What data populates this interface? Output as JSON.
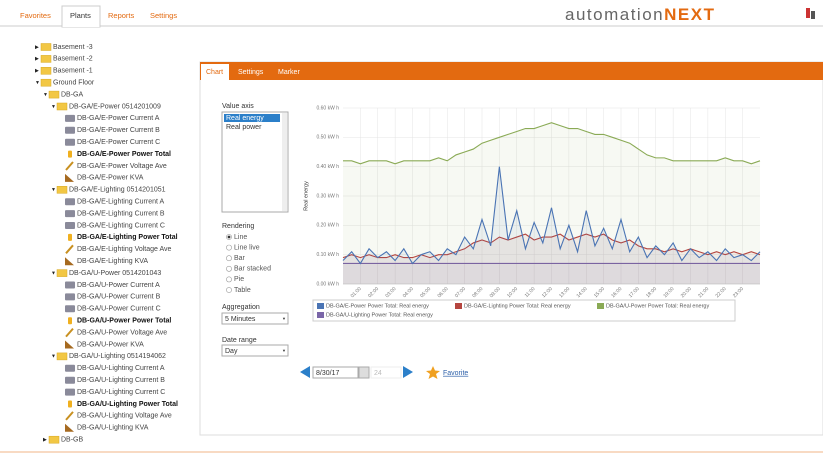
{
  "nav": {
    "tabs": [
      "Favorites",
      "Plants",
      "Reports",
      "Settings"
    ],
    "active": 1
  },
  "brand": {
    "light": "automation",
    "bold": "NEXT"
  },
  "tree": [
    {
      "label": "Basement -3",
      "level": 0,
      "icon": "folder",
      "open": false
    },
    {
      "label": "Basement -2",
      "level": 0,
      "icon": "folder",
      "open": false
    },
    {
      "label": "Basement -1",
      "level": 0,
      "icon": "folder",
      "open": false
    },
    {
      "label": "Ground Floor",
      "level": 0,
      "icon": "folder",
      "open": true
    },
    {
      "label": "DB-GA",
      "level": 1,
      "icon": "folder",
      "open": true
    },
    {
      "label": "DB-GA/E-Power 0514201009",
      "level": 2,
      "icon": "folder",
      "open": true
    },
    {
      "label": "DB-GA/E-Power Current A",
      "level": 3,
      "icon": "meter"
    },
    {
      "label": "DB-GA/E-Power Current B",
      "level": 3,
      "icon": "meter"
    },
    {
      "label": "DB-GA/E-Power Current C",
      "level": 3,
      "icon": "meter"
    },
    {
      "label": "DB-GA/E-Power Power Total",
      "level": 3,
      "icon": "total",
      "bold": true
    },
    {
      "label": "DB-GA/E-Power Voltage Ave",
      "level": 3,
      "icon": "voltage"
    },
    {
      "label": "DB-GA/E-Power KVA",
      "level": 3,
      "icon": "kva"
    },
    {
      "label": "DB-GA/E-Lighting 0514201051",
      "level": 2,
      "icon": "folder",
      "open": true
    },
    {
      "label": "DB-GA/E-Lighting Current A",
      "level": 3,
      "icon": "meter"
    },
    {
      "label": "DB-GA/E-Lighting Current B",
      "level": 3,
      "icon": "meter"
    },
    {
      "label": "DB-GA/E-Lighting Current C",
      "level": 3,
      "icon": "meter"
    },
    {
      "label": "DB-GA/E-Lighting Power Total",
      "level": 3,
      "icon": "total",
      "bold": true
    },
    {
      "label": "DB-GA/E-Lighting Voltage Ave",
      "level": 3,
      "icon": "voltage"
    },
    {
      "label": "DB-GA/E-Lighting KVA",
      "level": 3,
      "icon": "kva"
    },
    {
      "label": "DB-GA/U-Power 0514201043",
      "level": 2,
      "icon": "folder",
      "open": true
    },
    {
      "label": "DB-GA/U-Power Current A",
      "level": 3,
      "icon": "meter"
    },
    {
      "label": "DB-GA/U-Power Current B",
      "level": 3,
      "icon": "meter"
    },
    {
      "label": "DB-GA/U-Power Current C",
      "level": 3,
      "icon": "meter"
    },
    {
      "label": "DB-GA/U-Power Power Total",
      "level": 3,
      "icon": "total",
      "bold": true
    },
    {
      "label": "DB-GA/U-Power Voltage Ave",
      "level": 3,
      "icon": "voltage"
    },
    {
      "label": "DB-GA/U-Power KVA",
      "level": 3,
      "icon": "kva"
    },
    {
      "label": "DB-GA/U-Lighting 0514194062",
      "level": 2,
      "icon": "folder",
      "open": true
    },
    {
      "label": "DB-GA/U-Lighting Current A",
      "level": 3,
      "icon": "meter"
    },
    {
      "label": "DB-GA/U-Lighting Current B",
      "level": 3,
      "icon": "meter"
    },
    {
      "label": "DB-GA/U-Lighting Current C",
      "level": 3,
      "icon": "meter"
    },
    {
      "label": "DB-GA/U-Lighting Power Total",
      "level": 3,
      "icon": "total",
      "bold": true
    },
    {
      "label": "DB-GA/U-Lighting Voltage Ave",
      "level": 3,
      "icon": "voltage"
    },
    {
      "label": "DB-GA/U-Lighting KVA",
      "level": 3,
      "icon": "kva"
    },
    {
      "label": "DB-GB",
      "level": 1,
      "icon": "folder",
      "open": false
    }
  ],
  "panel": {
    "tabs": [
      "Chart",
      "Settings",
      "Marker"
    ],
    "active": 0
  },
  "controls": {
    "value_axis": {
      "label": "Value axis",
      "options": [
        "Real energy",
        "Real power"
      ],
      "selected": 0
    },
    "rendering": {
      "label": "Rendering",
      "options": [
        "Line",
        "Line live",
        "Bar",
        "Bar stacked",
        "Pie",
        "Table"
      ],
      "selected": 0
    },
    "aggregation": {
      "label": "Aggregation",
      "value": "5 Minutes"
    },
    "date_range": {
      "label": "Date range",
      "value": "Day"
    }
  },
  "date_nav": {
    "date": "8/30/17",
    "count": "24",
    "favorite": "Favorite"
  },
  "chart_data": {
    "type": "line",
    "y_label": "Real energy",
    "x": [
      0,
      0.5,
      1,
      1.5,
      2,
      2.5,
      3,
      3.5,
      4,
      4.5,
      5,
      5.5,
      6,
      6.5,
      7,
      7.5,
      8,
      8.5,
      9,
      9.5,
      10,
      10.5,
      11,
      11.5,
      12,
      12.5,
      13,
      13.5,
      14,
      14.5,
      15,
      15.5,
      16,
      16.5,
      17,
      17.5,
      18,
      18.5,
      19,
      19.5,
      20,
      20.5,
      21,
      21.5,
      22,
      22.5,
      23,
      23.5,
      24
    ],
    "xlim": [
      0,
      24
    ],
    "xticks": [
      {
        "value": 1,
        "label": "01:00"
      },
      {
        "value": 2,
        "label": "02:00"
      },
      {
        "value": 3,
        "label": "03:00"
      },
      {
        "value": 4,
        "label": "04:00"
      },
      {
        "value": 5,
        "label": "05:00"
      },
      {
        "value": 6,
        "label": "06:00"
      },
      {
        "value": 7,
        "label": "07:00"
      },
      {
        "value": 8,
        "label": "08:00"
      },
      {
        "value": 9,
        "label": "09:00"
      },
      {
        "value": 10,
        "label": "10:00"
      },
      {
        "value": 11,
        "label": "11:00"
      },
      {
        "value": 12,
        "label": "12:00"
      },
      {
        "value": 13,
        "label": "13:00"
      },
      {
        "value": 14,
        "label": "14:00"
      },
      {
        "value": 15,
        "label": "15:00"
      },
      {
        "value": 16,
        "label": "16:00"
      },
      {
        "value": 17,
        "label": "17:00"
      },
      {
        "value": 18,
        "label": "18:00"
      },
      {
        "value": 19,
        "label": "19:00"
      },
      {
        "value": 20,
        "label": "20:00"
      },
      {
        "value": 21,
        "label": "21:00"
      },
      {
        "value": 22,
        "label": "22:00"
      },
      {
        "value": 23,
        "label": "23:00"
      }
    ],
    "ylim": [
      0,
      0.6
    ],
    "yticks": [
      {
        "value": 0,
        "label": "0.00 kW h"
      },
      {
        "value": 0.1,
        "label": "0.10 kW h"
      },
      {
        "value": 0.2,
        "label": "0.20 kW h"
      },
      {
        "value": 0.3,
        "label": "0.30 kW h"
      },
      {
        "value": 0.4,
        "label": "0.40 kW h"
      },
      {
        "value": 0.5,
        "label": "0.50 kW h"
      },
      {
        "value": 0.6,
        "label": "0.60 kW h"
      }
    ],
    "grid": true,
    "legend": "bottom",
    "series": [
      {
        "name": "DB-GA/E-Power Power Total: Real energy",
        "color": "#4a74b4",
        "values": [
          0.08,
          0.11,
          0.07,
          0.12,
          0.09,
          0.11,
          0.08,
          0.12,
          0.07,
          0.1,
          0.11,
          0.08,
          0.12,
          0.1,
          0.16,
          0.12,
          0.22,
          0.13,
          0.4,
          0.15,
          0.25,
          0.12,
          0.21,
          0.14,
          0.26,
          0.12,
          0.2,
          0.11,
          0.25,
          0.13,
          0.19,
          0.12,
          0.22,
          0.11,
          0.16,
          0.09,
          0.13,
          0.1,
          0.14,
          0.08,
          0.12,
          0.09,
          0.11,
          0.08,
          0.12,
          0.09,
          0.1,
          0.08,
          0.11
        ]
      },
      {
        "name": "DB-GA/E-Lighting Power Total: Real energy",
        "color": "#b5453f",
        "values": [
          0.09,
          0.1,
          0.09,
          0.1,
          0.09,
          0.09,
          0.1,
          0.09,
          0.09,
          0.1,
          0.09,
          0.1,
          0.1,
          0.11,
          0.12,
          0.14,
          0.15,
          0.14,
          0.16,
          0.15,
          0.16,
          0.17,
          0.15,
          0.16,
          0.16,
          0.17,
          0.15,
          0.16,
          0.17,
          0.16,
          0.17,
          0.15,
          0.14,
          0.15,
          0.13,
          0.12,
          0.12,
          0.11,
          0.12,
          0.11,
          0.12,
          0.11,
          0.1,
          0.11,
          0.1,
          0.11,
          0.1,
          0.11,
          0.1
        ]
      },
      {
        "name": "DB-GA/U-Power Power Total: Real energy",
        "color": "#8aaa55",
        "values": [
          0.42,
          0.42,
          0.41,
          0.42,
          0.42,
          0.42,
          0.41,
          0.42,
          0.42,
          0.42,
          0.42,
          0.43,
          0.42,
          0.44,
          0.45,
          0.46,
          0.48,
          0.49,
          0.5,
          0.51,
          0.52,
          0.53,
          0.53,
          0.54,
          0.55,
          0.54,
          0.53,
          0.53,
          0.52,
          0.51,
          0.51,
          0.5,
          0.49,
          0.48,
          0.46,
          0.44,
          0.43,
          0.43,
          0.42,
          0.42,
          0.42,
          0.42,
          0.42,
          0.42,
          0.43,
          0.42,
          0.42,
          0.41,
          0.42
        ]
      },
      {
        "name": "DB-GA/U-Lighting Power Total: Real energy",
        "color": "#7a66a8",
        "values": [
          0.07,
          0.07,
          0.07,
          0.07,
          0.07,
          0.07,
          0.07,
          0.07,
          0.07,
          0.07,
          0.07,
          0.07,
          0.07,
          0.07,
          0.07,
          0.07,
          0.07,
          0.07,
          0.07,
          0.07,
          0.07,
          0.07,
          0.07,
          0.07,
          0.07,
          0.07,
          0.07,
          0.07,
          0.07,
          0.07,
          0.07,
          0.07,
          0.07,
          0.07,
          0.07,
          0.07,
          0.07,
          0.07,
          0.07,
          0.07,
          0.07,
          0.07,
          0.07,
          0.07,
          0.07,
          0.07,
          0.07,
          0.07,
          0.07
        ]
      }
    ]
  }
}
